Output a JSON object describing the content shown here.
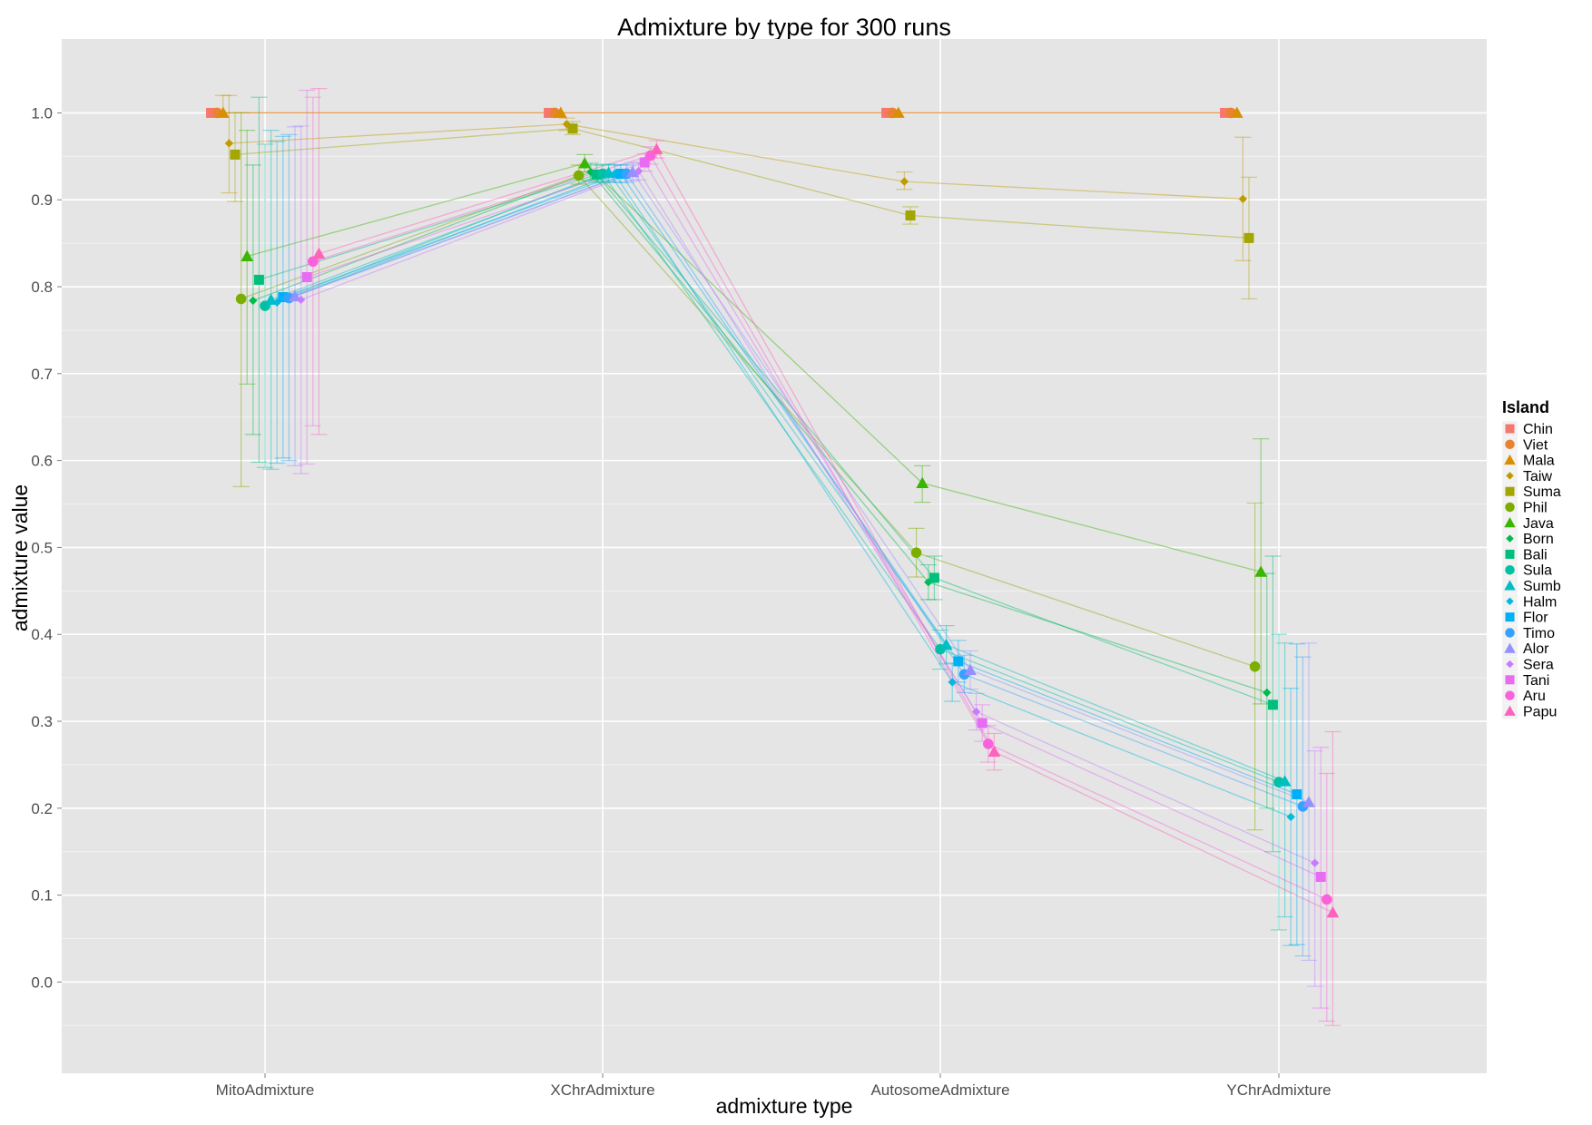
{
  "chart_data": {
    "type": "line",
    "title": "Admixture by type for 300 runs",
    "xlabel": "admixture type",
    "ylabel": "admixture value",
    "categories": [
      "MitoAdmixture",
      "XChrAdmixture",
      "AutosomeAdmixture",
      "YChrAdmixture"
    ],
    "ylim": [
      -0.105,
      1.085
    ],
    "yticks": [
      0.0,
      0.1,
      0.2,
      0.3,
      0.4,
      0.5,
      0.6,
      0.7,
      0.8,
      0.9,
      1.0
    ],
    "ytick_labels": [
      "0.0",
      "0.1",
      "0.2",
      "0.3",
      "0.4",
      "0.5",
      "0.6",
      "0.7",
      "0.8",
      "0.9",
      "1.0"
    ],
    "grid": true,
    "legend": {
      "title": "Island",
      "position": "right"
    },
    "series": [
      {
        "name": "Chin",
        "color": "#F8766D",
        "shape": "square",
        "values": [
          1.0,
          1.0,
          1.0,
          1.0
        ],
        "ci": [
          [
            1.0,
            1.0
          ],
          [
            1.0,
            1.0
          ],
          [
            1.0,
            1.0
          ],
          [
            1.0,
            1.0
          ]
        ]
      },
      {
        "name": "Viet",
        "color": "#EA8331",
        "shape": "circle",
        "values": [
          1.0,
          1.0,
          1.0,
          1.0
        ],
        "ci": [
          [
            1.0,
            1.0
          ],
          [
            1.0,
            1.0
          ],
          [
            1.0,
            1.0
          ],
          [
            1.0,
            1.0
          ]
        ]
      },
      {
        "name": "Mala",
        "color": "#D89000",
        "shape": "triangle",
        "values": [
          1.0,
          1.0,
          1.0,
          1.0
        ],
        "ci": [
          [
            1.0,
            1.02
          ],
          [
            1.0,
            1.0
          ],
          [
            1.0,
            1.0
          ],
          [
            1.0,
            1.0
          ]
        ]
      },
      {
        "name": "Taiw",
        "color": "#C09B00",
        "shape": "diamond",
        "values": [
          0.965,
          0.987,
          0.921,
          0.901
        ],
        "ci": [
          [
            0.908,
            1.02
          ],
          [
            0.98,
            0.994
          ],
          [
            0.912,
            0.932
          ],
          [
            0.83,
            0.972
          ]
        ]
      },
      {
        "name": "Suma",
        "color": "#A3A500",
        "shape": "square",
        "values": [
          0.952,
          0.982,
          0.882,
          0.856
        ],
        "ci": [
          [
            0.898,
            1.0
          ],
          [
            0.975,
            0.99
          ],
          [
            0.872,
            0.892
          ],
          [
            0.786,
            0.926
          ]
        ]
      },
      {
        "name": "Phil",
        "color": "#7CAE00",
        "shape": "circle",
        "values": [
          0.786,
          0.928,
          0.494,
          0.363
        ],
        "ci": [
          [
            0.57,
            1.0
          ],
          [
            0.918,
            0.94
          ],
          [
            0.466,
            0.522
          ],
          [
            0.175,
            0.551
          ]
        ]
      },
      {
        "name": "Java",
        "color": "#39B600",
        "shape": "triangle",
        "values": [
          0.835,
          0.942,
          0.574,
          0.472
        ],
        "ci": [
          [
            0.688,
            0.98
          ],
          [
            0.932,
            0.952
          ],
          [
            0.552,
            0.594
          ],
          [
            0.32,
            0.625
          ]
        ]
      },
      {
        "name": "Born",
        "color": "#00BB4E",
        "shape": "diamond",
        "values": [
          0.784,
          0.932,
          0.46,
          0.333
        ],
        "ci": [
          [
            0.63,
            0.94
          ],
          [
            0.922,
            0.942
          ],
          [
            0.44,
            0.48
          ],
          [
            0.2,
            0.47
          ]
        ]
      },
      {
        "name": "Bali",
        "color": "#00BF7D",
        "shape": "square",
        "values": [
          0.808,
          0.929,
          0.465,
          0.319
        ],
        "ci": [
          [
            0.598,
            1.018
          ],
          [
            0.92,
            0.94
          ],
          [
            0.44,
            0.49
          ],
          [
            0.15,
            0.49
          ]
        ]
      },
      {
        "name": "Sula",
        "color": "#00C1A3",
        "shape": "circle",
        "values": [
          0.778,
          0.93,
          0.383,
          0.23
        ],
        "ci": [
          [
            0.592,
            0.964
          ],
          [
            0.92,
            0.94
          ],
          [
            0.36,
            0.405
          ],
          [
            0.06,
            0.4
          ]
        ]
      },
      {
        "name": "Sumb",
        "color": "#00BFC4",
        "shape": "triangle",
        "values": [
          0.785,
          0.931,
          0.388,
          0.231
        ],
        "ci": [
          [
            0.59,
            0.98
          ],
          [
            0.921,
            0.941
          ],
          [
            0.366,
            0.41
          ],
          [
            0.075,
            0.39
          ]
        ]
      },
      {
        "name": "Halm",
        "color": "#00BAE0",
        "shape": "diamond",
        "values": [
          0.782,
          0.93,
          0.345,
          0.19
        ],
        "ci": [
          [
            0.597,
            0.967
          ],
          [
            0.92,
            0.94
          ],
          [
            0.323,
            0.367
          ],
          [
            0.042,
            0.338
          ]
        ]
      },
      {
        "name": "Flor",
        "color": "#00B0F6",
        "shape": "square",
        "values": [
          0.788,
          0.93,
          0.369,
          0.216
        ],
        "ci": [
          [
            0.603,
            0.973
          ],
          [
            0.92,
            0.94
          ],
          [
            0.345,
            0.393
          ],
          [
            0.043,
            0.389
          ]
        ]
      },
      {
        "name": "Timo",
        "color": "#35A2FF",
        "shape": "circle",
        "values": [
          0.787,
          0.93,
          0.354,
          0.202
        ],
        "ci": [
          [
            0.6,
            0.975
          ],
          [
            0.92,
            0.94
          ],
          [
            0.333,
            0.376
          ],
          [
            0.03,
            0.374
          ]
        ]
      },
      {
        "name": "Alor",
        "color": "#9590FF",
        "shape": "triangle",
        "values": [
          0.789,
          0.932,
          0.359,
          0.207
        ],
        "ci": [
          [
            0.594,
            0.984
          ],
          [
            0.922,
            0.942
          ],
          [
            0.337,
            0.381
          ],
          [
            0.025,
            0.39
          ]
        ]
      },
      {
        "name": "Sera",
        "color": "#C77CFF",
        "shape": "diamond",
        "values": [
          0.785,
          0.933,
          0.311,
          0.137
        ],
        "ci": [
          [
            0.585,
            0.985
          ],
          [
            0.923,
            0.943
          ],
          [
            0.29,
            0.332
          ],
          [
            -0.005,
            0.266
          ]
        ]
      },
      {
        "name": "Tani",
        "color": "#E76BF3",
        "shape": "square",
        "values": [
          0.811,
          0.943,
          0.298,
          0.121
        ],
        "ci": [
          [
            0.596,
            1.026
          ],
          [
            0.933,
            0.953
          ],
          [
            0.277,
            0.319
          ],
          [
            -0.03,
            0.27
          ]
        ]
      },
      {
        "name": "Aru",
        "color": "#FA62DB",
        "shape": "circle",
        "values": [
          0.829,
          0.951,
          0.274,
          0.095
        ],
        "ci": [
          [
            0.64,
            1.018
          ],
          [
            0.941,
            0.961
          ],
          [
            0.253,
            0.295
          ],
          [
            -0.045,
            0.24
          ]
        ]
      },
      {
        "name": "Papu",
        "color": "#FF62BC",
        "shape": "triangle",
        "values": [
          0.838,
          0.958,
          0.265,
          0.08
        ],
        "ci": [
          [
            0.63,
            1.028
          ],
          [
            0.948,
            0.968
          ],
          [
            0.244,
            0.286
          ],
          [
            -0.05,
            0.288
          ]
        ]
      }
    ]
  }
}
